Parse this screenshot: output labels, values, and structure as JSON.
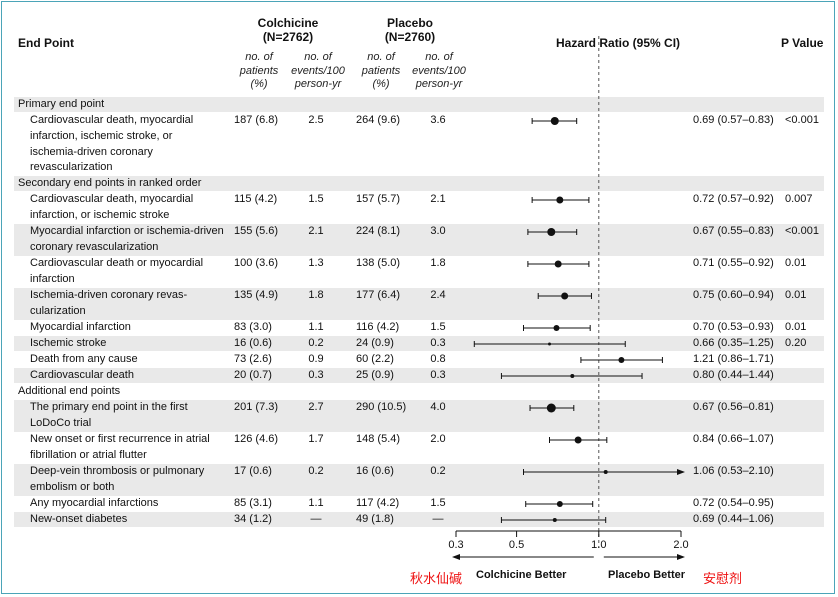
{
  "headers": {
    "end_point": "End Point",
    "colchicine_title": "Colchicine",
    "colchicine_n": "(N=2762)",
    "placebo_title": "Placebo",
    "placebo_n": "(N=2760)",
    "hr": "Hazard Ratio (95% CI)",
    "p": "P Value",
    "sub_patients": "no. of patients (%)",
    "sub_events": "no. of events/100 person-yr"
  },
  "sections": [
    {
      "title": "Primary end point"
    },
    {
      "title": "Secondary end points in ranked order"
    },
    {
      "title": "Additional end points"
    }
  ],
  "rows": [
    {
      "label": "Cardiovascular death, myocardial infarction, ischemic stroke, or ischemia-driven coronary revascularization",
      "c_pat": "187 (6.8)",
      "c_ev": "2.5",
      "p_pat": "264 (9.6)",
      "p_ev": "3.6",
      "hr": "0.69 (0.57–0.83)",
      "pval": "<0.001"
    },
    {
      "label": "Cardiovascular death, myocardial infarction, or ischemic stroke",
      "c_pat": "115 (4.2)",
      "c_ev": "1.5",
      "p_pat": "157 (5.7)",
      "p_ev": "2.1",
      "hr": "0.72 (0.57–0.92)",
      "pval": "0.007"
    },
    {
      "label": "Myocardial infarction or ischemia-driven coronary revascularization",
      "c_pat": "155 (5.6)",
      "c_ev": "2.1",
      "p_pat": "224 (8.1)",
      "p_ev": "3.0",
      "hr": "0.67 (0.55–0.83)",
      "pval": "<0.001"
    },
    {
      "label": "Cardiovascular death or myocardial infarction",
      "c_pat": "100 (3.6)",
      "c_ev": "1.3",
      "p_pat": "138 (5.0)",
      "p_ev": "1.8",
      "hr": "0.71 (0.55–0.92)",
      "pval": "0.01"
    },
    {
      "label": "Ischemia-driven coronary revas-cularization",
      "c_pat": "135 (4.9)",
      "c_ev": "1.8",
      "p_pat": "177 (6.4)",
      "p_ev": "2.4",
      "hr": "0.75 (0.60–0.94)",
      "pval": "0.01"
    },
    {
      "label": "Myocardial infarction",
      "c_pat": "83 (3.0)",
      "c_ev": "1.1",
      "p_pat": "116 (4.2)",
      "p_ev": "1.5",
      "hr": "0.70 (0.53–0.93)",
      "pval": "0.01"
    },
    {
      "label": "Ischemic stroke",
      "c_pat": "16 (0.6)",
      "c_ev": "0.2",
      "p_pat": "24 (0.9)",
      "p_ev": "0.3",
      "hr": "0.66 (0.35–1.25)",
      "pval": "0.20"
    },
    {
      "label": "Death from any cause",
      "c_pat": "73 (2.6)",
      "c_ev": "0.9",
      "p_pat": "60 (2.2)",
      "p_ev": "0.8",
      "hr": "1.21 (0.86–1.71)",
      "pval": ""
    },
    {
      "label": "Cardiovascular death",
      "c_pat": "20 (0.7)",
      "c_ev": "0.3",
      "p_pat": "25 (0.9)",
      "p_ev": "0.3",
      "hr": "0.80 (0.44–1.44)",
      "pval": ""
    },
    {
      "label": "The primary end point in the first LoDoCo trial",
      "c_pat": "201 (7.3)",
      "c_ev": "2.7",
      "p_pat": "290 (10.5)",
      "p_ev": "4.0",
      "hr": "0.67 (0.56–0.81)",
      "pval": ""
    },
    {
      "label": "New onset or first recurrence in atrial fibrillation or atrial flutter",
      "c_pat": "126 (4.6)",
      "c_ev": "1.7",
      "p_pat": "148 (5.4)",
      "p_ev": "2.0",
      "hr": "0.84 (0.66–1.07)",
      "pval": ""
    },
    {
      "label": "Deep-vein thrombosis or pulmonary embolism or both",
      "c_pat": "17 (0.6)",
      "c_ev": "0.2",
      "p_pat": "16 (0.6)",
      "p_ev": "0.2",
      "hr": "1.06 (0.53–2.10)",
      "pval": ""
    },
    {
      "label": "Any myocardial infarctions",
      "c_pat": "85 (3.1)",
      "c_ev": "1.1",
      "p_pat": "117 (4.2)",
      "p_ev": "1.5",
      "hr": "0.72 (0.54–0.95)",
      "pval": ""
    },
    {
      "label": "New-onset diabetes",
      "c_pat": "34 (1.2)",
      "c_ev": "—",
      "p_pat": "49 (1.8)",
      "p_ev": "—",
      "hr": "0.69 (0.44–1.06)",
      "pval": ""
    }
  ],
  "chart_data": {
    "type": "forest",
    "title": "Hazard Ratio (95% CI)",
    "xscale": "log",
    "xlim": [
      0.3,
      2.0
    ],
    "ticks": [
      0.3,
      0.5,
      1.0,
      2.0
    ],
    "tick_labels": [
      "0.3",
      "0.5",
      "1.0",
      "2.0"
    ],
    "reference": 1.0,
    "left_label": "Colchicine Better",
    "right_label": "Placebo Better",
    "points": [
      {
        "hr": 0.69,
        "lo": 0.57,
        "hi": 0.83
      },
      {
        "hr": 0.72,
        "lo": 0.57,
        "hi": 0.92
      },
      {
        "hr": 0.67,
        "lo": 0.55,
        "hi": 0.83
      },
      {
        "hr": 0.71,
        "lo": 0.55,
        "hi": 0.92
      },
      {
        "hr": 0.75,
        "lo": 0.6,
        "hi": 0.94
      },
      {
        "hr": 0.7,
        "lo": 0.53,
        "hi": 0.93
      },
      {
        "hr": 0.66,
        "lo": 0.35,
        "hi": 1.25
      },
      {
        "hr": 1.21,
        "lo": 0.86,
        "hi": 1.71
      },
      {
        "hr": 0.8,
        "lo": 0.44,
        "hi": 1.44
      },
      {
        "hr": 0.67,
        "lo": 0.56,
        "hi": 0.81
      },
      {
        "hr": 0.84,
        "lo": 0.66,
        "hi": 1.07
      },
      {
        "hr": 1.06,
        "lo": 0.53,
        "hi": 2.1
      },
      {
        "hr": 0.72,
        "lo": 0.54,
        "hi": 0.95
      },
      {
        "hr": 0.69,
        "lo": 0.44,
        "hi": 1.06
      }
    ]
  },
  "annotations": {
    "left_chinese": "秋水仙碱",
    "right_chinese": "安慰剂"
  },
  "colors": {
    "band": "#e9e9e9",
    "frame": "#4ba4b8",
    "annotation": "#e11111"
  }
}
